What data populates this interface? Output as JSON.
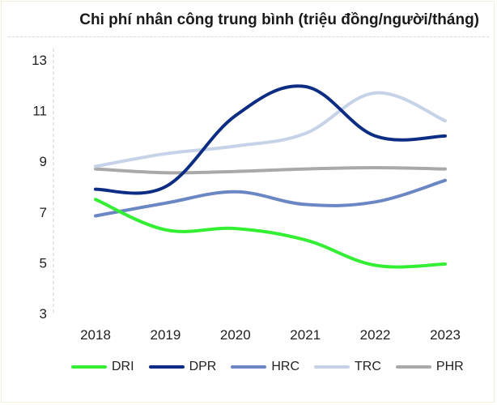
{
  "chart_data": {
    "type": "line",
    "title": "Chi phí nhân công trung bình (triệu đồng/người/tháng)",
    "x": [
      "2018",
      "2019",
      "2020",
      "2021",
      "2022",
      "2023"
    ],
    "ylim": [
      3,
      13
    ],
    "yticks": [
      "3",
      "5",
      "7",
      "9",
      "11",
      "13"
    ],
    "grid": false,
    "legend_position": "bottom",
    "series": [
      {
        "name": "DRI",
        "color": "#33ee33",
        "values": [
          7.5,
          6.3,
          6.35,
          5.9,
          4.9,
          4.95
        ]
      },
      {
        "name": "DPR",
        "color": "#0c2d83",
        "values": [
          7.9,
          8.0,
          10.8,
          11.95,
          10.0,
          10.0
        ]
      },
      {
        "name": "HRC",
        "color": "#6a86c3",
        "values": [
          6.85,
          7.35,
          7.8,
          7.3,
          7.4,
          8.25
        ]
      },
      {
        "name": "TRC",
        "color": "#c5d2e8",
        "values": [
          8.8,
          9.3,
          9.6,
          10.1,
          11.7,
          10.6
        ]
      },
      {
        "name": "PHR",
        "color": "#a9a9a9",
        "values": [
          8.7,
          8.55,
          8.6,
          8.7,
          8.75,
          8.7
        ]
      }
    ]
  }
}
